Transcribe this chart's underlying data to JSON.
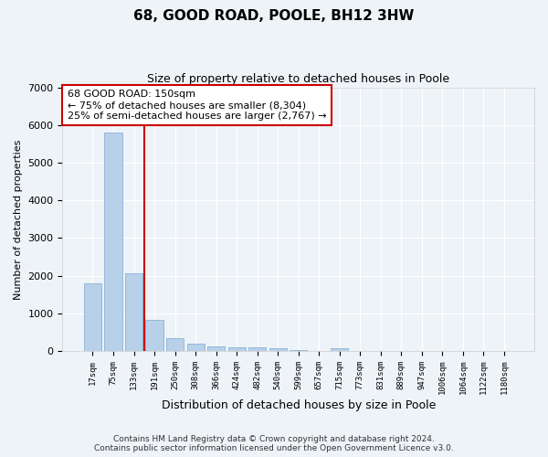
{
  "title1": "68, GOOD ROAD, POOLE, BH12 3HW",
  "title2": "Size of property relative to detached houses in Poole",
  "xlabel": "Distribution of detached houses by size in Poole",
  "ylabel": "Number of detached properties",
  "bar_color": "#b8d0e8",
  "bar_edge_color": "#7aaad0",
  "categories": [
    "17sqm",
    "75sqm",
    "133sqm",
    "191sqm",
    "250sqm",
    "308sqm",
    "366sqm",
    "424sqm",
    "482sqm",
    "540sqm",
    "599sqm",
    "657sqm",
    "715sqm",
    "773sqm",
    "831sqm",
    "889sqm",
    "947sqm",
    "1006sqm",
    "1064sqm",
    "1122sqm",
    "1180sqm"
  ],
  "values": [
    1790,
    5800,
    2060,
    830,
    340,
    195,
    130,
    110,
    90,
    75,
    20,
    0,
    65,
    0,
    0,
    0,
    0,
    0,
    0,
    0,
    0
  ],
  "ylim": [
    0,
    7000
  ],
  "yticks": [
    0,
    1000,
    2000,
    3000,
    4000,
    5000,
    6000,
    7000
  ],
  "vline_x": 2.5,
  "vline_color": "#cc0000",
  "annotation_text": "68 GOOD ROAD: 150sqm\n← 75% of detached houses are smaller (8,304)\n25% of semi-detached houses are larger (2,767) →",
  "footer1": "Contains HM Land Registry data © Crown copyright and database right 2024.",
  "footer2": "Contains public sector information licensed under the Open Government Licence v3.0.",
  "bg_color": "#eef3f8",
  "plot_bg_color": "#eef3f8",
  "figsize": [
    6.0,
    5.0
  ],
  "dpi": 100
}
